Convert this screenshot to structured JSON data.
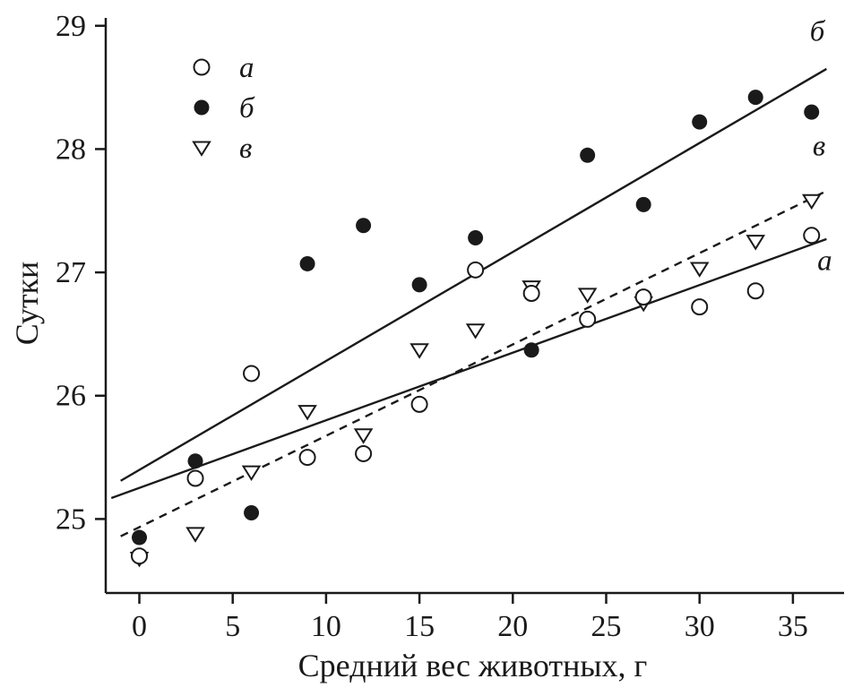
{
  "colors": {
    "ink": "#1a1a1a",
    "background": "#ffffff"
  },
  "chart_data": {
    "type": "scatter",
    "title": "",
    "xlabel": "Средний вес животных, г",
    "ylabel": "Сутки",
    "xlim": [
      -1.8,
      37.5
    ],
    "ylim": [
      24.4,
      29.1
    ],
    "xticks": [
      0,
      5,
      10,
      15,
      20,
      25,
      30,
      35
    ],
    "yticks": [
      25,
      26,
      27,
      28,
      29
    ],
    "grid": false,
    "legend_position": "upper-left-inside",
    "x": [
      0,
      3,
      6,
      9,
      12,
      15,
      18,
      21,
      24,
      27,
      30,
      33,
      36
    ],
    "series": [
      {
        "name": "в",
        "marker": "open-triangle-down",
        "values": [
          24.68,
          24.88,
          25.38,
          25.87,
          25.68,
          26.37,
          26.53,
          26.88,
          26.82,
          26.75,
          27.03,
          27.25,
          27.58
        ],
        "line_style": "dashed",
        "trend": {
          "x1": -1.0,
          "y1": 24.86,
          "x2": 36.8,
          "y2": 27.66
        },
        "end_label": "в",
        "end_label_at": {
          "x": 36.4,
          "y": 27.95
        }
      },
      {
        "name": "а",
        "marker": "open-circle",
        "values": [
          24.7,
          25.33,
          26.18,
          25.5,
          25.53,
          25.93,
          27.02,
          26.83,
          26.62,
          26.8,
          26.72,
          26.85,
          27.3
        ],
        "line_style": "solid",
        "trend": {
          "x1": -1.5,
          "y1": 25.17,
          "x2": 36.8,
          "y2": 27.27
        },
        "end_label": "а",
        "end_label_at": {
          "x": 36.7,
          "y": 27.02
        }
      },
      {
        "name": "б",
        "marker": "filled-circle",
        "values": [
          24.85,
          25.47,
          25.05,
          27.07,
          27.38,
          26.9,
          27.28,
          26.37,
          27.95,
          27.55,
          28.22,
          28.42,
          28.3
        ],
        "line_style": "solid",
        "trend": {
          "x1": -1.0,
          "y1": 25.31,
          "x2": 36.8,
          "y2": 28.65
        },
        "end_label": "б",
        "end_label_at": {
          "x": 36.3,
          "y": 28.88
        }
      }
    ],
    "legend": [
      {
        "marker": "open-circle",
        "label": "а"
      },
      {
        "marker": "filled-circle",
        "label": "б"
      },
      {
        "marker": "open-triangle-down",
        "label": "в"
      }
    ]
  }
}
